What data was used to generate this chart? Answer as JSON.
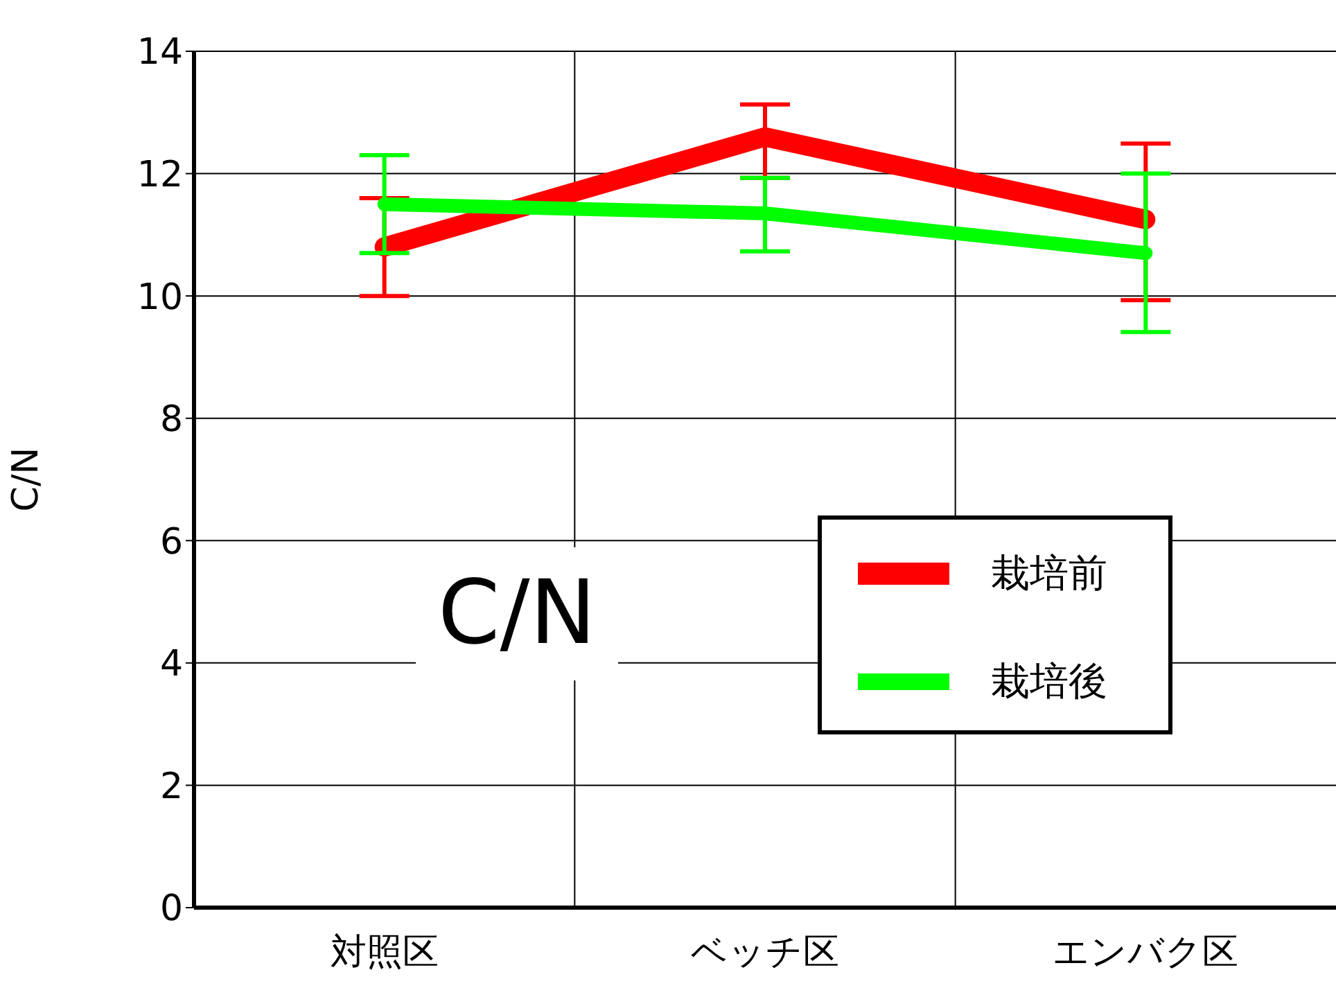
{
  "chart_data": {
    "type": "line",
    "ylabel": "C/N",
    "categories": [
      "対照区",
      "ベッチ区",
      "エンバク区"
    ],
    "series": [
      {
        "name": "栽培前",
        "color": "#ff0000",
        "values": [
          10.8,
          12.6,
          11.25
        ],
        "errors": [
          0.8,
          [
            11.93,
            13.13
          ],
          [
            9.93,
            12.49
          ]
        ]
      },
      {
        "name": "栽培後",
        "color": "#00ff00",
        "values": [
          11.5,
          11.35,
          10.7
        ],
        "errors": [
          0.8,
          [
            10.73,
            11.93
          ],
          [
            9.41,
            12.0
          ]
        ]
      }
    ],
    "ylim": [
      0,
      14
    ],
    "yticks": [
      0,
      2,
      4,
      6,
      8,
      10,
      12,
      14
    ],
    "grid": true,
    "legend": "right",
    "annotations": [
      "C/N"
    ]
  }
}
